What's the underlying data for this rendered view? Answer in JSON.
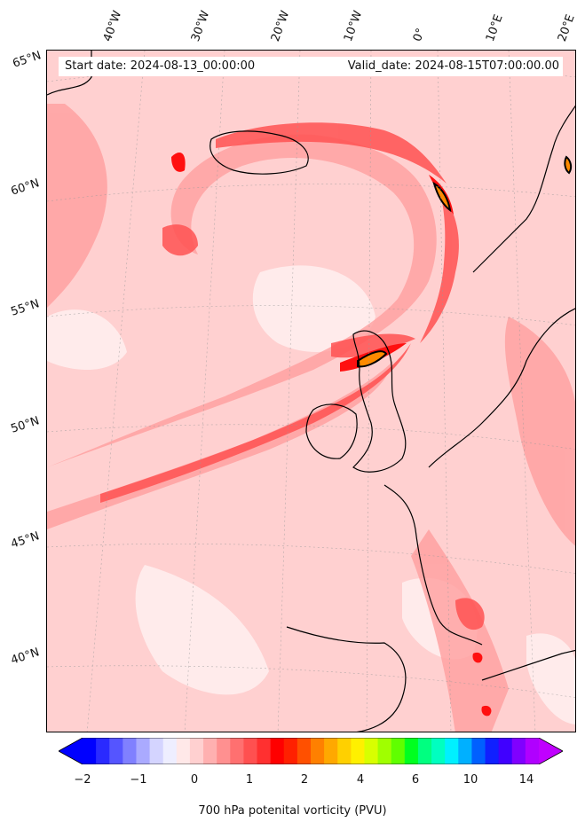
{
  "header": {
    "start_date": "Start date: 2024-08-13_00:00:00",
    "valid_date": "Valid_date: 2024-08-15T07:00:00.00"
  },
  "lon_labels": [
    "40°W",
    "30°W",
    "20°W",
    "10°W",
    "0°",
    "10°E",
    "20°E"
  ],
  "lat_labels": [
    "65°N",
    "60°N",
    "55°N",
    "50°N",
    "45°N",
    "40°N"
  ],
  "colorbar": {
    "label": "700 hPa potenital vorticity (PVU)",
    "ticks": [
      "−2",
      "−1",
      "0",
      "1",
      "2",
      "4",
      "6",
      "10",
      "14"
    ],
    "colors": [
      "#0000ff",
      "#2a2aff",
      "#5555ff",
      "#8080ff",
      "#aaaaff",
      "#d4d4ff",
      "#eeeeff",
      "#ffe8e8",
      "#ffd0d0",
      "#ffb0b0",
      "#ff9090",
      "#ff7070",
      "#ff5050",
      "#ff3030",
      "#ff0000",
      "#ff2000",
      "#ff5000",
      "#ff8000",
      "#ffa800",
      "#ffd000",
      "#fff000",
      "#d8ff00",
      "#a0ff00",
      "#60ff00",
      "#00ff20",
      "#00ff80",
      "#00ffc0",
      "#00f0ff",
      "#00b0ff",
      "#0060ff",
      "#1020ff",
      "#4000ff",
      "#8000ff",
      "#b000ff"
    ],
    "under_color": "#0000ff",
    "over_color": "#c000ff"
  },
  "field_colors": {
    "background": "#ffd0d0",
    "light": "#ffe6e6",
    "medium": "#ff9f9f",
    "strong": "#ff5c5c",
    "max": "#ff1010",
    "extreme": "#ff8a00",
    "coast": "#000000"
  }
}
